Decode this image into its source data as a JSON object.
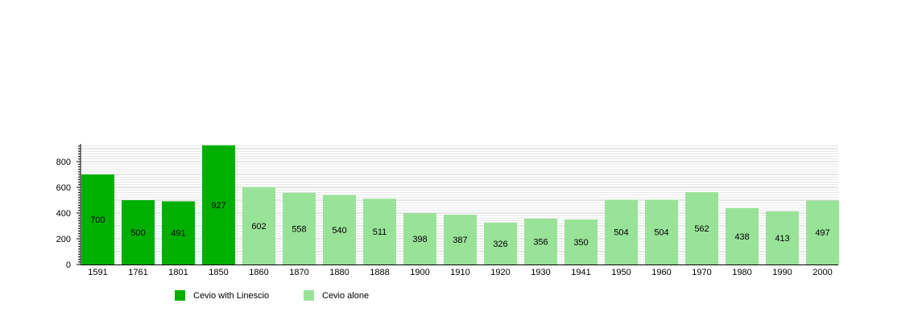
{
  "chart_data": {
    "type": "bar",
    "categories": [
      "1591",
      "1761",
      "1801",
      "1850",
      "1860",
      "1870",
      "1880",
      "1888",
      "1900",
      "1910",
      "1920",
      "1930",
      "1941",
      "1950",
      "1960",
      "1970",
      "1980",
      "1990",
      "2000"
    ],
    "values": [
      700,
      500,
      491,
      927,
      602,
      558,
      540,
      511,
      398,
      387,
      326,
      356,
      350,
      504,
      504,
      562,
      438,
      413,
      497
    ],
    "series_index": [
      0,
      0,
      0,
      0,
      1,
      1,
      1,
      1,
      1,
      1,
      1,
      1,
      1,
      1,
      1,
      1,
      1,
      1,
      1
    ],
    "series": [
      {
        "name": "Cevio with Linescio",
        "color": "#00b000"
      },
      {
        "name": "Cevio alone",
        "color": "#99e399"
      }
    ],
    "yticks": [
      0,
      200,
      400,
      600,
      800
    ],
    "ylim": [
      0,
      930
    ],
    "grid": true,
    "legend": "bottom",
    "data_labels": true
  }
}
